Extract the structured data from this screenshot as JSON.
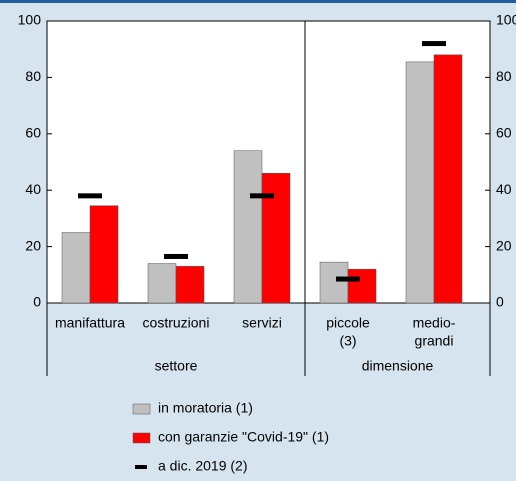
{
  "chart_data": {
    "type": "bar",
    "categories": [
      [
        "manifattura"
      ],
      [
        "costruzioni"
      ],
      [
        "servizi"
      ],
      [
        "piccole",
        "(3)"
      ],
      [
        "medio-",
        "grandi"
      ]
    ],
    "groups": [
      "settore",
      "dimensione"
    ],
    "series": [
      {
        "name": "in moratoria (1)",
        "color": "#c0c0c0",
        "values": [
          25,
          14,
          54,
          14.5,
          85.5
        ]
      },
      {
        "name": "con garanzie \"Covid-19\" (1)",
        "color": "#ff0000",
        "values": [
          34.5,
          13,
          46,
          12,
          88
        ]
      },
      {
        "name": "a dic. 2019 (2)",
        "color": "#000000",
        "marker": "dash",
        "values": [
          38,
          16.5,
          38,
          8.5,
          92
        ]
      }
    ],
    "ylim": [
      0,
      100
    ],
    "yticks": [
      0,
      20,
      40,
      60,
      80,
      100
    ],
    "y2lim": [
      0,
      100
    ],
    "y2ticks": [
      0,
      20,
      40,
      60,
      80,
      100
    ]
  }
}
